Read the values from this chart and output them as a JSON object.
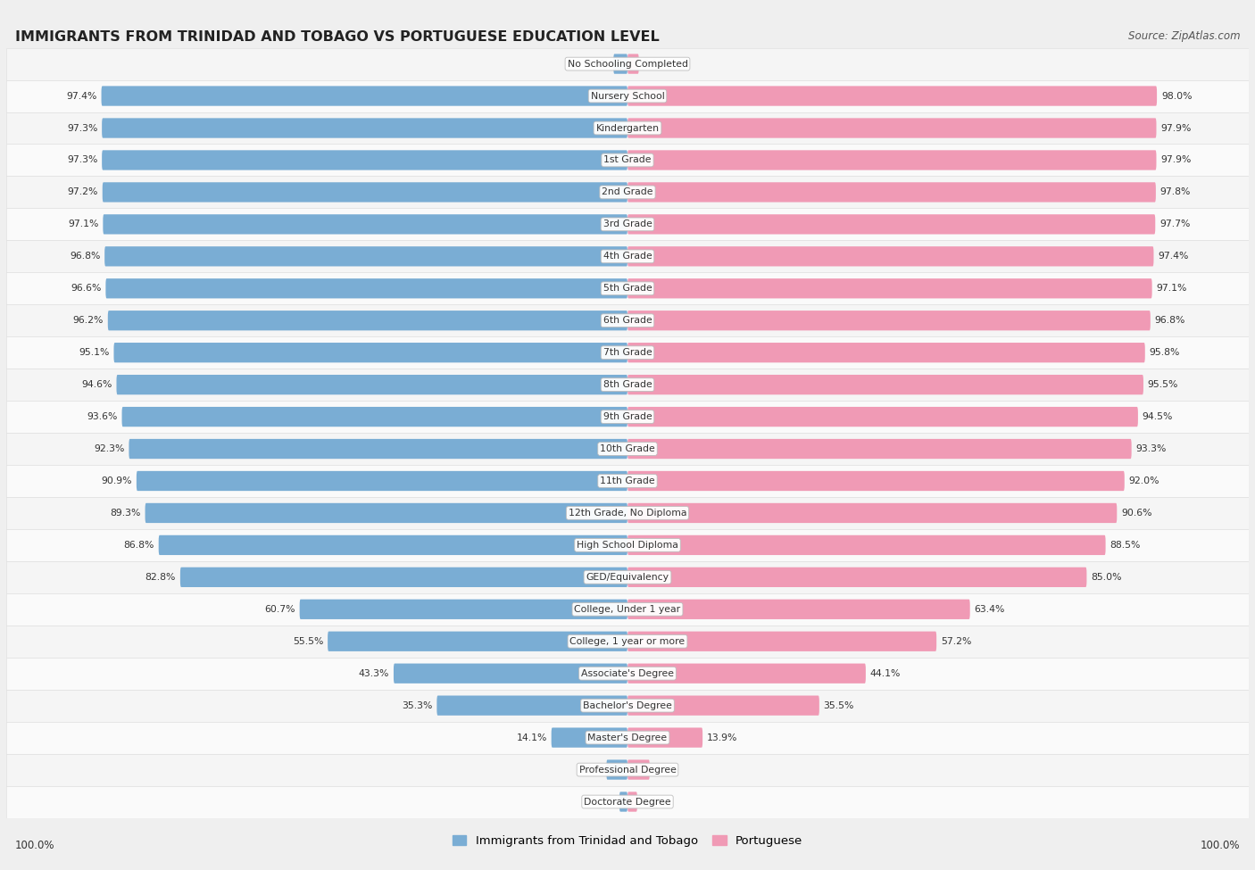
{
  "title": "IMMIGRANTS FROM TRINIDAD AND TOBAGO VS PORTUGUESE EDUCATION LEVEL",
  "source": "Source: ZipAtlas.com",
  "categories": [
    "No Schooling Completed",
    "Nursery School",
    "Kindergarten",
    "1st Grade",
    "2nd Grade",
    "3rd Grade",
    "4th Grade",
    "5th Grade",
    "6th Grade",
    "7th Grade",
    "8th Grade",
    "9th Grade",
    "10th Grade",
    "11th Grade",
    "12th Grade, No Diploma",
    "High School Diploma",
    "GED/Equivalency",
    "College, Under 1 year",
    "College, 1 year or more",
    "Associate's Degree",
    "Bachelor's Degree",
    "Master's Degree",
    "Professional Degree",
    "Doctorate Degree"
  ],
  "trinidad_values": [
    2.6,
    97.4,
    97.3,
    97.3,
    97.2,
    97.1,
    96.8,
    96.6,
    96.2,
    95.1,
    94.6,
    93.6,
    92.3,
    90.9,
    89.3,
    86.8,
    82.8,
    60.7,
    55.5,
    43.3,
    35.3,
    14.1,
    3.9,
    1.5
  ],
  "portuguese_values": [
    2.1,
    98.0,
    97.9,
    97.9,
    97.8,
    97.7,
    97.4,
    97.1,
    96.8,
    95.8,
    95.5,
    94.5,
    93.3,
    92.0,
    90.6,
    88.5,
    85.0,
    63.4,
    57.2,
    44.1,
    35.5,
    13.9,
    4.1,
    1.8
  ],
  "trinidad_color": "#7aadd4",
  "portuguese_color": "#f09ab5",
  "background_color": "#efefef",
  "row_bg_even": "#f5f5f5",
  "row_bg_odd": "#fafafa",
  "legend_trinidad": "Immigrants from Trinidad and Tobago",
  "legend_portuguese": "Portuguese"
}
